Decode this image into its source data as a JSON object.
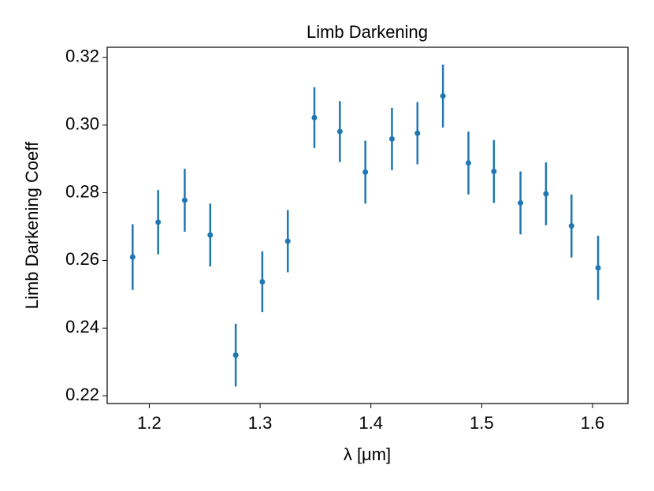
{
  "chart_data": {
    "type": "errorbar",
    "title": "Limb Darkening",
    "x_label": "λ [μm]",
    "y_label": "Limb Darkening Coeff",
    "x": [
      1.185,
      1.208,
      1.232,
      1.255,
      1.278,
      1.302,
      1.325,
      1.349,
      1.372,
      1.395,
      1.419,
      1.442,
      1.465,
      1.488,
      1.511,
      1.535,
      1.558,
      1.581,
      1.605
    ],
    "series": [
      {
        "color": "#1f77b4",
        "values": [
          0.261,
          0.2713,
          0.2778,
          0.2675,
          0.232,
          0.2537,
          0.2657,
          0.3022,
          0.2981,
          0.2861,
          0.2959,
          0.2976,
          0.3086,
          0.2888,
          0.2863,
          0.277,
          0.2797,
          0.2702,
          0.2578
        ],
        "errors": [
          0.0097,
          0.0095,
          0.0093,
          0.0093,
          0.0093,
          0.009,
          0.0092,
          0.009,
          0.009,
          0.0093,
          0.0092,
          0.0092,
          0.0093,
          0.0093,
          0.0093,
          0.0093,
          0.0093,
          0.0093,
          0.0095
        ]
      }
    ],
    "xlim": [
      1.162,
      1.632
    ],
    "xticks": [
      1.2,
      1.3,
      1.4,
      1.5,
      1.6
    ],
    "ylim": [
      0.2177,
      0.323
    ],
    "yticks": [
      {
        "value": 0.22,
        "label": "0.22"
      },
      {
        "value": 0.24,
        "label": "0.24"
      },
      {
        "value": 0.26,
        "label": "0.26"
      },
      {
        "value": 0.28,
        "label": "0.28"
      },
      {
        "value": 0.3,
        "label": "0.30"
      },
      {
        "value": 0.32,
        "label": "0.32"
      }
    ],
    "grid": false
  }
}
